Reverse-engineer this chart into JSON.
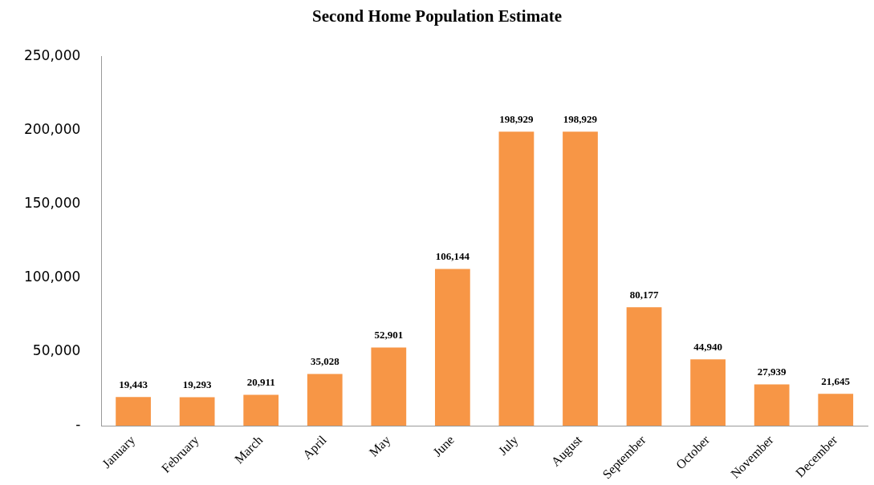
{
  "chart_data": {
    "type": "bar",
    "title": "Second Home Population Estimate",
    "categories": [
      "January",
      "February",
      "March",
      "April",
      "May",
      "June",
      "July",
      "August",
      "September",
      "October",
      "November",
      "December"
    ],
    "values": [
      19443,
      19293,
      20911,
      35028,
      52901,
      106144,
      198929,
      198929,
      80177,
      44940,
      27939,
      21645
    ],
    "value_labels": [
      "19,443",
      "19,293",
      "20,911",
      "35,028",
      "52,901",
      "106,144",
      "198,929",
      "198,929",
      "80,177",
      "44,940",
      "27,939",
      "21,645"
    ],
    "color": "#f79646",
    "ylim": [
      0,
      250000
    ],
    "yticks": [
      {
        "value": 0,
        "label": "-"
      },
      {
        "value": 50000,
        "label": "50,000"
      },
      {
        "value": 100000,
        "label": "100,000"
      },
      {
        "value": 150000,
        "label": "150,000"
      },
      {
        "value": 200000,
        "label": "200,000"
      },
      {
        "value": 250000,
        "label": "250,000"
      }
    ],
    "grid": false,
    "legend": false
  }
}
